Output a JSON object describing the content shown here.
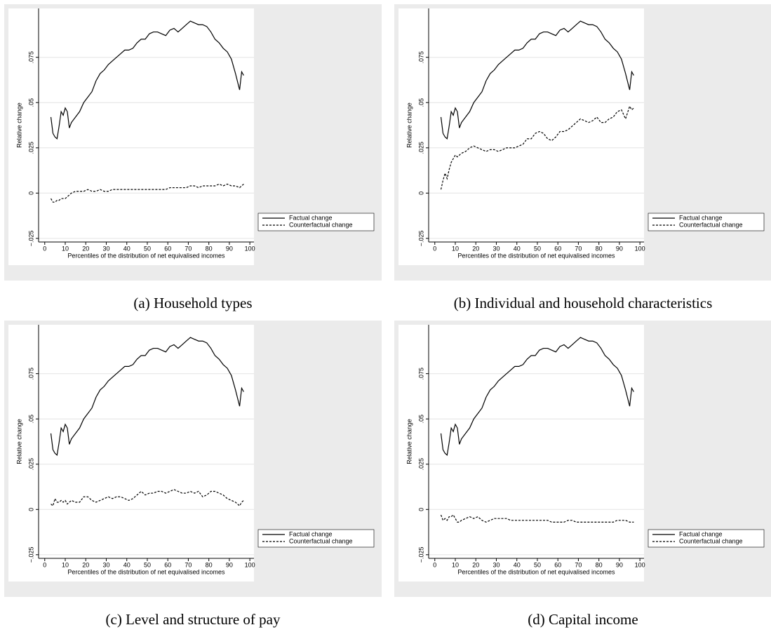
{
  "chart_data": [
    {
      "type": "line",
      "caption": "(a) Household types",
      "xlabel": "Percentiles of the distribution of net equivalised incomes",
      "ylabel": "Relative change",
      "x": [
        3,
        4,
        5,
        6,
        7,
        8,
        9,
        10,
        11,
        12,
        13,
        15,
        17,
        19,
        21,
        23,
        25,
        27,
        29,
        31,
        33,
        35,
        37,
        39,
        41,
        43,
        45,
        47,
        49,
        51,
        53,
        55,
        57,
        59,
        61,
        63,
        65,
        67,
        69,
        71,
        73,
        75,
        77,
        79,
        81,
        83,
        85,
        87,
        89,
        91,
        93,
        95,
        96,
        97
      ],
      "series": [
        {
          "name": "Factual change",
          "color": "#000000",
          "style": "solid",
          "values": [
            0.042,
            0.033,
            0.031,
            0.03,
            0.037,
            0.045,
            0.043,
            0.047,
            0.045,
            0.036,
            0.039,
            0.042,
            0.045,
            0.05,
            0.053,
            0.056,
            0.062,
            0.066,
            0.068,
            0.071,
            0.073,
            0.075,
            0.077,
            0.079,
            0.079,
            0.08,
            0.083,
            0.085,
            0.085,
            0.088,
            0.089,
            0.089,
            0.088,
            0.087,
            0.09,
            0.091,
            0.089,
            0.091,
            0.093,
            0.095,
            0.094,
            0.093,
            0.093,
            0.092,
            0.089,
            0.085,
            0.083,
            0.08,
            0.078,
            0.074,
            0.066,
            0.057,
            0.067,
            0.065
          ]
        },
        {
          "name": "Counterfactual change",
          "color": "#000000",
          "style": "dashed",
          "values": [
            -0.003,
            -0.005,
            -0.005,
            -0.004,
            -0.004,
            -0.003,
            -0.003,
            -0.003,
            -0.002,
            -0.001,
            0,
            0.001,
            0.001,
            0.001,
            0.002,
            0.001,
            0.001,
            0.002,
            0.001,
            0.001,
            0.002,
            0.002,
            0.002,
            0.002,
            0.002,
            0.002,
            0.002,
            0.002,
            0.002,
            0.002,
            0.002,
            0.002,
            0.002,
            0.002,
            0.003,
            0.003,
            0.003,
            0.003,
            0.003,
            0.004,
            0.004,
            0.003,
            0.004,
            0.004,
            0.004,
            0.004,
            0.005,
            0.004,
            0.005,
            0.004,
            0.004,
            0.003,
            0.004,
            0.005
          ]
        }
      ],
      "xlim": [
        -3,
        102
      ],
      "ylim": [
        -0.027,
        0.102
      ],
      "xticks": [
        0,
        10,
        20,
        30,
        40,
        50,
        60,
        70,
        80,
        90,
        100
      ],
      "yticks": [
        {
          "value": -0.025,
          "label": "−.025"
        },
        0,
        {
          "value": 0.025,
          "label": ".025"
        },
        {
          "value": 0.05,
          "label": ".05"
        },
        {
          "value": 0.075,
          "label": ".075"
        }
      ],
      "grid": true,
      "legend": "right"
    },
    {
      "type": "line",
      "caption": "(b) Individual and household characteristics",
      "xlabel": "Percentiles of the distribution of net equivalised incomes",
      "ylabel": "Relative change",
      "x": [
        3,
        4,
        5,
        6,
        7,
        8,
        9,
        10,
        11,
        12,
        13,
        15,
        17,
        19,
        21,
        23,
        25,
        27,
        29,
        31,
        33,
        35,
        37,
        39,
        41,
        43,
        45,
        47,
        49,
        51,
        53,
        55,
        57,
        59,
        61,
        63,
        65,
        67,
        69,
        71,
        73,
        75,
        77,
        79,
        81,
        83,
        85,
        87,
        89,
        91,
        93,
        95,
        96,
        97
      ],
      "series": [
        {
          "name": "Factual change",
          "color": "#000000",
          "style": "solid",
          "values": [
            0.042,
            0.033,
            0.031,
            0.03,
            0.037,
            0.045,
            0.043,
            0.047,
            0.045,
            0.036,
            0.039,
            0.042,
            0.045,
            0.05,
            0.053,
            0.056,
            0.062,
            0.066,
            0.068,
            0.071,
            0.073,
            0.075,
            0.077,
            0.079,
            0.079,
            0.08,
            0.083,
            0.085,
            0.085,
            0.088,
            0.089,
            0.089,
            0.088,
            0.087,
            0.09,
            0.091,
            0.089,
            0.091,
            0.093,
            0.095,
            0.094,
            0.093,
            0.093,
            0.092,
            0.089,
            0.085,
            0.083,
            0.08,
            0.078,
            0.074,
            0.066,
            0.057,
            0.067,
            0.065
          ]
        },
        {
          "name": "Counterfactual change",
          "color": "#000000",
          "style": "dashed",
          "values": [
            0.002,
            0.007,
            0.011,
            0.008,
            0.013,
            0.017,
            0.019,
            0.021,
            0.02,
            0.021,
            0.022,
            0.023,
            0.025,
            0.026,
            0.025,
            0.024,
            0.023,
            0.024,
            0.024,
            0.023,
            0.024,
            0.025,
            0.025,
            0.025,
            0.026,
            0.027,
            0.03,
            0.03,
            0.033,
            0.034,
            0.033,
            0.03,
            0.029,
            0.031,
            0.034,
            0.034,
            0.035,
            0.037,
            0.039,
            0.041,
            0.04,
            0.039,
            0.04,
            0.042,
            0.039,
            0.039,
            0.041,
            0.042,
            0.045,
            0.046,
            0.041,
            0.048,
            0.046,
            0.047
          ]
        }
      ],
      "xlim": [
        -3,
        102
      ],
      "ylim": [
        -0.027,
        0.102
      ],
      "xticks": [
        0,
        10,
        20,
        30,
        40,
        50,
        60,
        70,
        80,
        90,
        100
      ],
      "yticks": [
        {
          "value": -0.025,
          "label": "−.025"
        },
        0,
        {
          "value": 0.025,
          "label": ".025"
        },
        {
          "value": 0.05,
          "label": ".05"
        },
        {
          "value": 0.075,
          "label": ".075"
        }
      ],
      "grid": true,
      "legend": "right"
    },
    {
      "type": "line",
      "caption": "(c) Level and structure of pay",
      "xlabel": "Percentiles of the distribution of net equivalised incomes",
      "ylabel": "Relative change",
      "x": [
        3,
        4,
        5,
        6,
        7,
        8,
        9,
        10,
        11,
        12,
        13,
        15,
        17,
        19,
        21,
        23,
        25,
        27,
        29,
        31,
        33,
        35,
        37,
        39,
        41,
        43,
        45,
        47,
        49,
        51,
        53,
        55,
        57,
        59,
        61,
        63,
        65,
        67,
        69,
        71,
        73,
        75,
        77,
        79,
        81,
        83,
        85,
        87,
        89,
        91,
        93,
        95,
        96,
        97
      ],
      "series": [
        {
          "name": "Factual change",
          "color": "#000000",
          "style": "solid",
          "values": [
            0.042,
            0.033,
            0.031,
            0.03,
            0.037,
            0.045,
            0.043,
            0.047,
            0.045,
            0.036,
            0.039,
            0.042,
            0.045,
            0.05,
            0.053,
            0.056,
            0.062,
            0.066,
            0.068,
            0.071,
            0.073,
            0.075,
            0.077,
            0.079,
            0.079,
            0.08,
            0.083,
            0.085,
            0.085,
            0.088,
            0.089,
            0.089,
            0.088,
            0.087,
            0.09,
            0.091,
            0.089,
            0.091,
            0.093,
            0.095,
            0.094,
            0.093,
            0.093,
            0.092,
            0.089,
            0.085,
            0.083,
            0.08,
            0.078,
            0.074,
            0.066,
            0.057,
            0.067,
            0.065
          ]
        },
        {
          "name": "Counterfactual change",
          "color": "#000000",
          "style": "dashed",
          "values": [
            0.003,
            0.002,
            0.006,
            0.004,
            0.004,
            0.005,
            0.004,
            0.005,
            0.003,
            0.004,
            0.005,
            0.004,
            0.004,
            0.007,
            0.007,
            0.005,
            0.004,
            0.005,
            0.006,
            0.007,
            0.006,
            0.007,
            0.007,
            0.006,
            0.005,
            0.006,
            0.008,
            0.01,
            0.008,
            0.009,
            0.009,
            0.01,
            0.01,
            0.009,
            0.01,
            0.011,
            0.01,
            0.009,
            0.009,
            0.01,
            0.009,
            0.01,
            0.007,
            0.008,
            0.01,
            0.01,
            0.009,
            0.008,
            0.006,
            0.005,
            0.004,
            0.002,
            0.004,
            0.005
          ]
        }
      ],
      "xlim": [
        -3,
        102
      ],
      "ylim": [
        -0.027,
        0.102
      ],
      "xticks": [
        0,
        10,
        20,
        30,
        40,
        50,
        60,
        70,
        80,
        90,
        100
      ],
      "yticks": [
        {
          "value": -0.025,
          "label": "−.025"
        },
        0,
        {
          "value": 0.025,
          "label": ".025"
        },
        {
          "value": 0.05,
          "label": ".05"
        },
        {
          "value": 0.075,
          "label": ".075"
        }
      ],
      "grid": true,
      "legend": "right"
    },
    {
      "type": "line",
      "caption": "(d) Capital income",
      "xlabel": "Percentiles of the distribution of net equivalised incomes",
      "ylabel": "Relative change",
      "x": [
        3,
        4,
        5,
        6,
        7,
        8,
        9,
        10,
        11,
        12,
        13,
        15,
        17,
        19,
        21,
        23,
        25,
        27,
        29,
        31,
        33,
        35,
        37,
        39,
        41,
        43,
        45,
        47,
        49,
        51,
        53,
        55,
        57,
        59,
        61,
        63,
        65,
        67,
        69,
        71,
        73,
        75,
        77,
        79,
        81,
        83,
        85,
        87,
        89,
        91,
        93,
        95,
        96,
        97
      ],
      "series": [
        {
          "name": "Factual change",
          "color": "#000000",
          "style": "solid",
          "values": [
            0.042,
            0.033,
            0.031,
            0.03,
            0.037,
            0.045,
            0.043,
            0.047,
            0.045,
            0.036,
            0.039,
            0.042,
            0.045,
            0.05,
            0.053,
            0.056,
            0.062,
            0.066,
            0.068,
            0.071,
            0.073,
            0.075,
            0.077,
            0.079,
            0.079,
            0.08,
            0.083,
            0.085,
            0.085,
            0.088,
            0.089,
            0.089,
            0.088,
            0.087,
            0.09,
            0.091,
            0.089,
            0.091,
            0.093,
            0.095,
            0.094,
            0.093,
            0.093,
            0.092,
            0.089,
            0.085,
            0.083,
            0.08,
            0.078,
            0.074,
            0.066,
            0.057,
            0.067,
            0.065
          ]
        },
        {
          "name": "Counterfactual change",
          "color": "#000000",
          "style": "dashed",
          "values": [
            -0.003,
            -0.006,
            -0.005,
            -0.006,
            -0.004,
            -0.004,
            -0.003,
            -0.005,
            -0.007,
            -0.007,
            -0.006,
            -0.005,
            -0.004,
            -0.005,
            -0.004,
            -0.006,
            -0.007,
            -0.006,
            -0.005,
            -0.005,
            -0.005,
            -0.005,
            -0.006,
            -0.006,
            -0.006,
            -0.006,
            -0.006,
            -0.006,
            -0.006,
            -0.006,
            -0.006,
            -0.006,
            -0.007,
            -0.007,
            -0.007,
            -0.007,
            -0.006,
            -0.006,
            -0.007,
            -0.007,
            -0.007,
            -0.007,
            -0.007,
            -0.007,
            -0.007,
            -0.007,
            -0.007,
            -0.007,
            -0.006,
            -0.006,
            -0.006,
            -0.007,
            -0.007,
            -0.007
          ]
        }
      ],
      "xlim": [
        -3,
        102
      ],
      "ylim": [
        -0.027,
        0.102
      ],
      "xticks": [
        0,
        10,
        20,
        30,
        40,
        50,
        60,
        70,
        80,
        90,
        100
      ],
      "yticks": [
        {
          "value": -0.025,
          "label": "−.025"
        },
        0,
        {
          "value": 0.025,
          "label": ".025"
        },
        {
          "value": 0.05,
          "label": ".05"
        },
        {
          "value": 0.075,
          "label": ".075"
        }
      ],
      "grid": true,
      "legend": "right"
    }
  ]
}
